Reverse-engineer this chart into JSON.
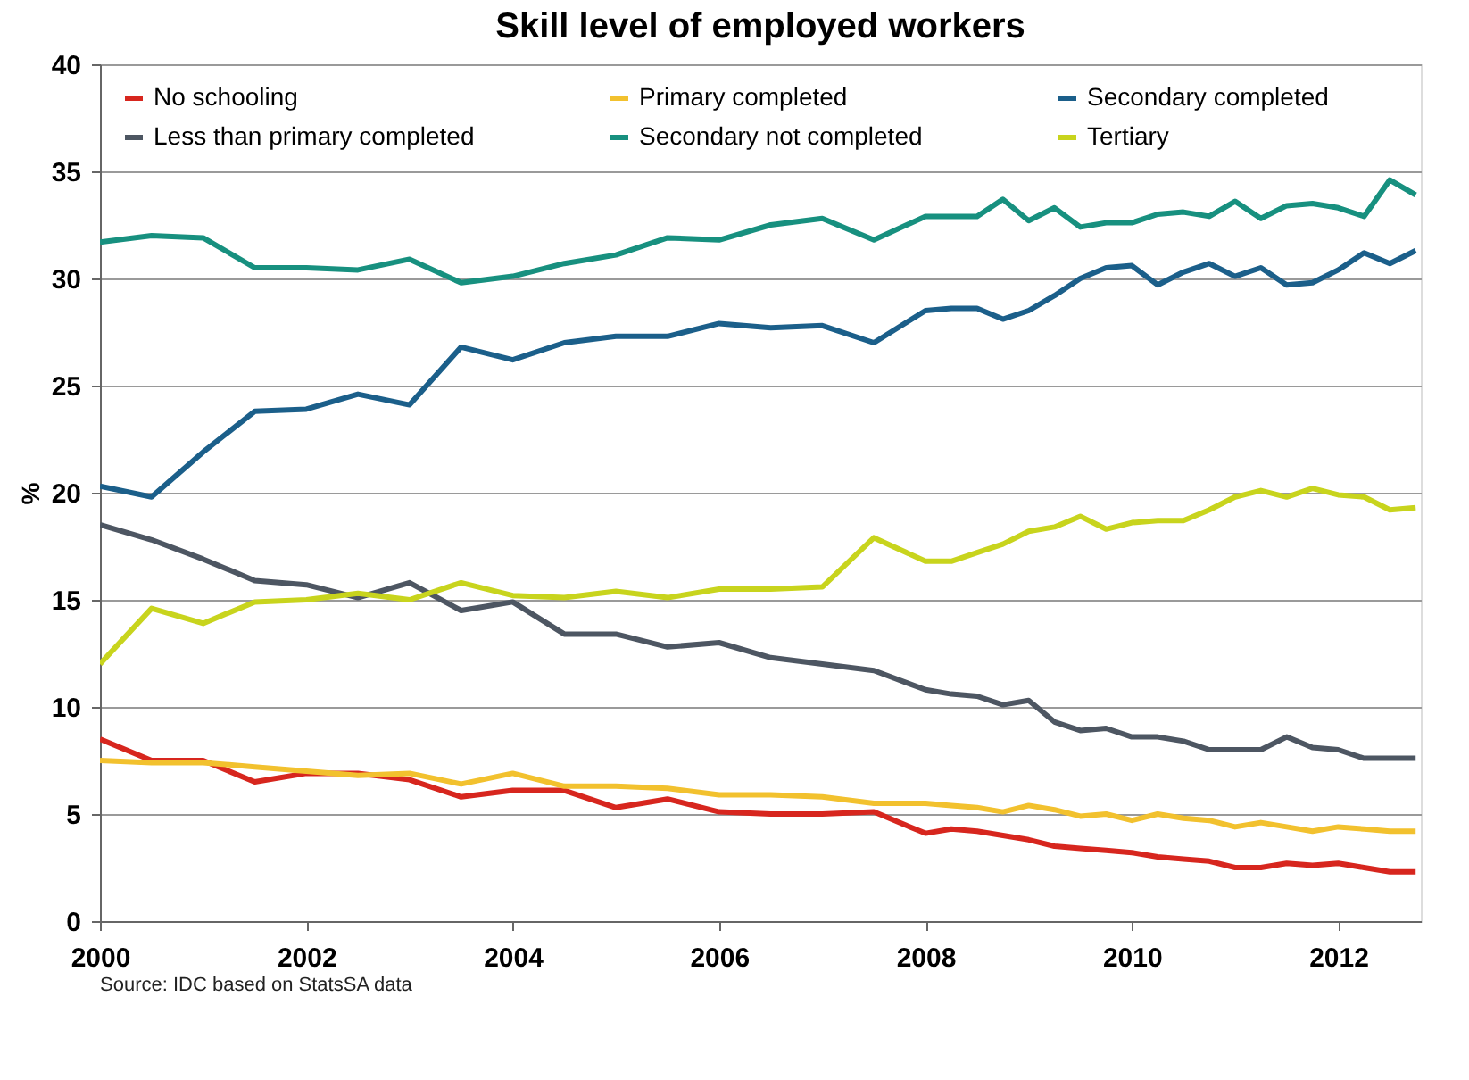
{
  "chart_data": {
    "type": "line",
    "title": "Skill level of employed workers",
    "ylabel": "%",
    "annotations": [
      "Source: IDC based on StatsSA data"
    ],
    "x": [
      2000,
      2000.5,
      2001,
      2001.5,
      2002,
      2002.5,
      2003,
      2003.5,
      2004,
      2004.5,
      2005,
      2005.5,
      2006,
      2006.5,
      2007,
      2007.5,
      2008,
      2008.25,
      2008.5,
      2008.75,
      2009,
      2009.25,
      2009.5,
      2009.75,
      2010,
      2010.25,
      2010.5,
      2010.75,
      2011,
      2011.25,
      2011.5,
      2011.75,
      2012,
      2012.25,
      2012.5,
      2012.75
    ],
    "xlim": [
      2000,
      2012.8
    ],
    "xticks": [
      2000,
      2002,
      2004,
      2006,
      2008,
      2010,
      2012
    ],
    "ylim": [
      0,
      40
    ],
    "yticks": [
      0,
      5,
      10,
      15,
      20,
      25,
      30,
      35,
      40
    ],
    "grid": "y",
    "legend": "top left",
    "marker": "none",
    "line_style": "solid",
    "series": [
      {
        "name": "No schooling",
        "color": "#d7261e",
        "values": [
          8.5,
          7.5,
          7.5,
          6.5,
          6.9,
          6.9,
          6.6,
          5.8,
          6.1,
          6.1,
          5.3,
          5.7,
          5.1,
          5.0,
          5.0,
          5.1,
          4.1,
          4.3,
          4.2,
          4.0,
          3.8,
          3.5,
          3.4,
          3.3,
          3.2,
          3.0,
          2.9,
          2.8,
          2.5,
          2.5,
          2.7,
          2.6,
          2.7,
          2.5,
          2.3,
          2.3
        ]
      },
      {
        "name": "Less than primary completed",
        "color": "#4d5662",
        "values": [
          18.5,
          17.8,
          16.9,
          15.9,
          15.7,
          15.1,
          15.8,
          14.5,
          14.9,
          13.4,
          13.4,
          12.8,
          13.0,
          12.3,
          12.0,
          11.7,
          10.8,
          10.6,
          10.5,
          10.1,
          10.3,
          9.3,
          8.9,
          9.0,
          8.6,
          8.6,
          8.4,
          8.0,
          8.0,
          8.0,
          8.6,
          8.1,
          8.0,
          7.6,
          7.6,
          7.6
        ]
      },
      {
        "name": "Primary completed",
        "color": "#f2c12e",
        "values": [
          7.5,
          7.4,
          7.4,
          7.2,
          7.0,
          6.8,
          6.9,
          6.4,
          6.9,
          6.3,
          6.3,
          6.2,
          5.9,
          5.9,
          5.8,
          5.5,
          5.5,
          5.4,
          5.3,
          5.1,
          5.4,
          5.2,
          4.9,
          5.0,
          4.7,
          5.0,
          4.8,
          4.7,
          4.4,
          4.6,
          4.4,
          4.2,
          4.4,
          4.3,
          4.2,
          4.2
        ]
      },
      {
        "name": "Secondary not completed",
        "color": "#17907f",
        "values": [
          31.7,
          32.0,
          31.9,
          30.5,
          30.5,
          30.4,
          30.9,
          29.8,
          30.1,
          30.7,
          31.1,
          31.9,
          31.8,
          32.5,
          32.8,
          31.8,
          32.9,
          32.9,
          32.9,
          33.7,
          32.7,
          33.3,
          32.4,
          32.6,
          32.6,
          33.0,
          33.1,
          32.9,
          33.6,
          32.8,
          33.4,
          33.5,
          33.3,
          32.9,
          34.6,
          33.9
        ]
      },
      {
        "name": "Secondary completed",
        "color": "#1b5f8a",
        "values": [
          20.3,
          19.8,
          21.9,
          23.8,
          23.9,
          24.6,
          24.1,
          26.8,
          26.2,
          27.0,
          27.3,
          27.3,
          27.9,
          27.7,
          27.8,
          27.0,
          28.5,
          28.6,
          28.6,
          28.1,
          28.5,
          29.2,
          30.0,
          30.5,
          30.6,
          29.7,
          30.3,
          30.7,
          30.1,
          30.5,
          29.7,
          29.8,
          30.4,
          31.2,
          30.7,
          31.3
        ]
      },
      {
        "name": "Tertiary",
        "color": "#c8d41d",
        "values": [
          12.0,
          14.6,
          13.9,
          14.9,
          15.0,
          15.3,
          15.0,
          15.8,
          15.2,
          15.1,
          15.4,
          15.1,
          15.5,
          15.5,
          15.6,
          17.9,
          16.8,
          16.8,
          17.2,
          17.6,
          18.2,
          18.4,
          18.9,
          18.3,
          18.6,
          18.7,
          18.7,
          19.2,
          19.8,
          20.1,
          19.8,
          20.2,
          19.9,
          19.8,
          19.2,
          19.3
        ]
      }
    ]
  }
}
